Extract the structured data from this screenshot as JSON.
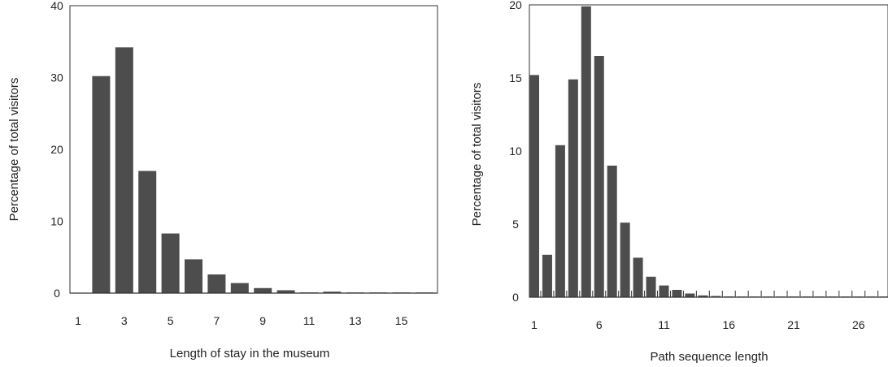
{
  "chart_data": [
    {
      "type": "bar",
      "title": "",
      "xlabel": "Length of stay in the museum",
      "ylabel": "Percentage of total visitors",
      "ylim": [
        0,
        40
      ],
      "yticks": [
        "0",
        "10",
        "20",
        "30",
        "40"
      ],
      "xtick_labels": [
        "1",
        "3",
        "5",
        "7",
        "9",
        "11",
        "13",
        "15"
      ],
      "categories": [
        1,
        2,
        3,
        4,
        5,
        6,
        7,
        8,
        9,
        10,
        11,
        12,
        13,
        14,
        15,
        16
      ],
      "values": [
        0,
        30.2,
        34.2,
        17.0,
        8.3,
        4.7,
        2.6,
        1.4,
        0.7,
        0.4,
        0.1,
        0.2,
        0.05,
        0.05,
        0.05,
        0.05
      ],
      "bar_color": "#4d4d4d",
      "grid": false,
      "legend": "none"
    },
    {
      "type": "bar",
      "title": "",
      "xlabel": "Path sequence length",
      "ylabel": "Percentage of total visitors",
      "ylim": [
        0,
        20
      ],
      "yticks": [
        "0",
        "5",
        "10",
        "15",
        "20"
      ],
      "xtick_labels": [
        "1",
        "6",
        "11",
        "16",
        "21",
        "26"
      ],
      "categories": [
        1,
        2,
        3,
        4,
        5,
        6,
        7,
        8,
        9,
        10,
        11,
        12,
        13,
        14,
        15,
        16,
        17,
        18,
        19,
        20,
        21,
        22,
        23,
        24,
        25,
        26,
        27,
        28,
        29
      ],
      "values": [
        15.2,
        2.9,
        10.4,
        14.9,
        19.9,
        16.5,
        9.0,
        5.1,
        2.7,
        1.4,
        0.8,
        0.5,
        0.25,
        0.12,
        0.08,
        0.05,
        0.04,
        0.03,
        0.03,
        0.02,
        0.02,
        0.02,
        0.02,
        0.02,
        0.02,
        0.02,
        0.02,
        0.02,
        0.02
      ],
      "bar_color": "#4d4d4d",
      "grid": false,
      "legend": "none"
    }
  ]
}
